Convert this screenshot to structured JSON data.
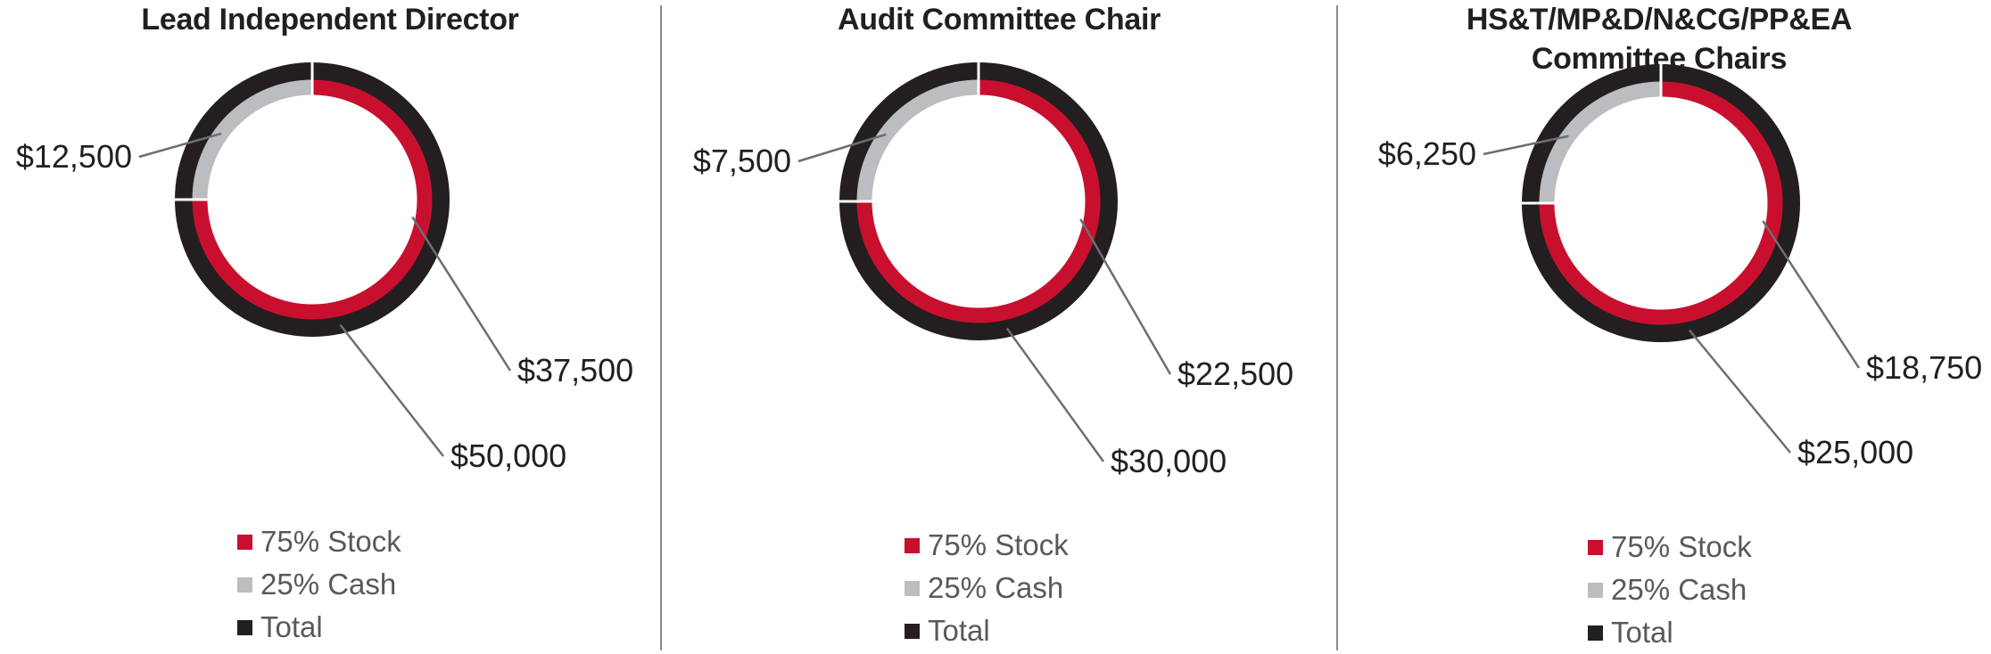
{
  "colors": {
    "stock": "#c8102e",
    "cash": "#bcbdc0",
    "total": "#231f20"
  },
  "chart_data": [
    {
      "type": "pie",
      "title": "Lead Independent Director",
      "series": [
        {
          "name": "Total",
          "values": [
            50000
          ],
          "labels": [
            "$50,000"
          ]
        },
        {
          "categories": [
            "Stock",
            "Cash"
          ],
          "values": [
            37500,
            12500
          ],
          "labels": [
            "$37,500",
            "$12,500"
          ]
        }
      ],
      "legend": [
        "75% Stock",
        "25% Cash",
        "Total"
      ],
      "legend_position": "bottom"
    },
    {
      "type": "pie",
      "title": "Audit Committee Chair",
      "series": [
        {
          "name": "Total",
          "values": [
            30000
          ],
          "labels": [
            "$30,000"
          ]
        },
        {
          "categories": [
            "Stock",
            "Cash"
          ],
          "values": [
            22500,
            7500
          ],
          "labels": [
            "$22,500",
            "$7,500"
          ]
        }
      ],
      "legend": [
        "75% Stock",
        "25% Cash",
        "Total"
      ],
      "legend_position": "bottom"
    },
    {
      "type": "pie",
      "title": "HS&T/MP&D/N&CG/PP&EA Committee Chairs",
      "series": [
        {
          "name": "Total",
          "values": [
            25000
          ],
          "labels": [
            "$25,000"
          ]
        },
        {
          "categories": [
            "Stock",
            "Cash"
          ],
          "values": [
            18750,
            6250
          ],
          "labels": [
            "$18,750",
            "$6,250"
          ]
        }
      ],
      "legend": [
        "75% Stock",
        "25% Cash",
        "Total"
      ],
      "legend_position": "bottom"
    }
  ]
}
